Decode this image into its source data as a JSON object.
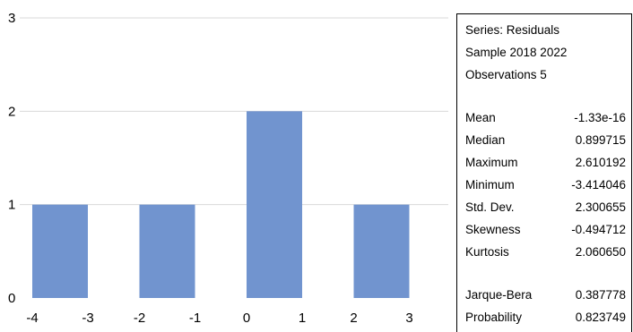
{
  "chart_data": {
    "type": "bar",
    "categories": [
      [
        "-4",
        "-3"
      ],
      [
        "-2",
        "-1"
      ],
      [
        "0",
        "1"
      ],
      [
        "2",
        "3"
      ]
    ],
    "values": [
      1,
      1,
      2,
      1
    ],
    "ylim": [
      0,
      3
    ],
    "yticks": [
      "0",
      "1",
      "2",
      "3"
    ],
    "xticks": [
      "-4",
      "-3",
      "-2",
      "-1",
      "0",
      "1",
      "2",
      "3"
    ],
    "grid": true,
    "bar_color": "#7194cf",
    "grid_color": "#d9d9d9"
  },
  "stats": {
    "series": "Series: Residuals",
    "sample": "Sample 2018 2022",
    "observations": "Observations 5",
    "rows": [
      {
        "label": "Mean",
        "value": "-1.33e-16"
      },
      {
        "label": "Median",
        "value": "0.899715"
      },
      {
        "label": "Maximum",
        "value": "2.610192"
      },
      {
        "label": "Minimum",
        "value": "-3.414046"
      },
      {
        "label": "Std. Dev.",
        "value": "2.300655"
      },
      {
        "label": "Skewness",
        "value": "-0.494712"
      },
      {
        "label": "Kurtosis",
        "value": "2.060650"
      },
      {
        "label": "Jarque-Bera",
        "value": "0.387778"
      },
      {
        "label": "Probability",
        "value": "0.823749"
      }
    ]
  }
}
